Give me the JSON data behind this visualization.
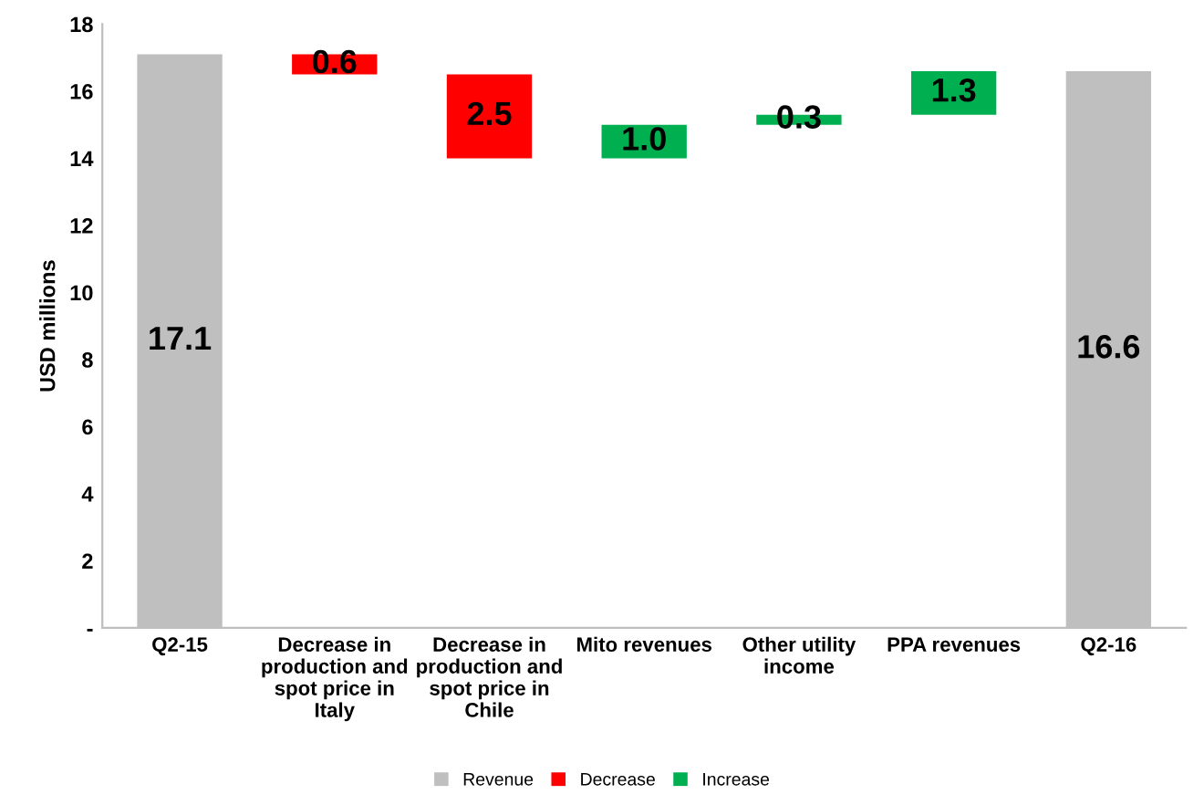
{
  "chart_data": {
    "type": "bar",
    "ylabel": "USD millions",
    "categories": [
      "Q2-15",
      "Decrease in production and spot price in Italy",
      "Decrease in production and spot price in Chile",
      "Mito revenues",
      "Other utility income",
      "PPA revenues",
      "Q2-16"
    ],
    "series": [
      {
        "name": "Revenue",
        "color": "#bfbfbf",
        "values": [
          17.1,
          null,
          null,
          null,
          null,
          null,
          16.6
        ],
        "value_labels": [
          "17.1",
          null,
          null,
          null,
          null,
          null,
          "16.6"
        ],
        "base": [
          0,
          null,
          null,
          null,
          null,
          null,
          0
        ]
      },
      {
        "name": "Decrease",
        "color": "#ff0000",
        "values": [
          null,
          0.6,
          2.5,
          null,
          null,
          null,
          null
        ],
        "value_labels": [
          null,
          "0.6",
          "2.5",
          null,
          null,
          null,
          null
        ],
        "base": [
          null,
          16.5,
          14.0,
          null,
          null,
          null,
          null
        ]
      },
      {
        "name": "Increase",
        "color": "#00b050",
        "values": [
          null,
          null,
          null,
          1.0,
          0.3,
          1.3,
          null
        ],
        "value_labels": [
          null,
          null,
          null,
          "1.0",
          "0.3",
          "1.3",
          null
        ],
        "base": [
          null,
          null,
          null,
          14.0,
          15.0,
          15.3,
          null
        ]
      }
    ],
    "ylim": [
      0,
      18
    ],
    "yticks": [
      {
        "value": 0,
        "label": "-"
      },
      2,
      4,
      6,
      8,
      10,
      12,
      14,
      16,
      18
    ],
    "legend": "bottom",
    "grid": false
  }
}
